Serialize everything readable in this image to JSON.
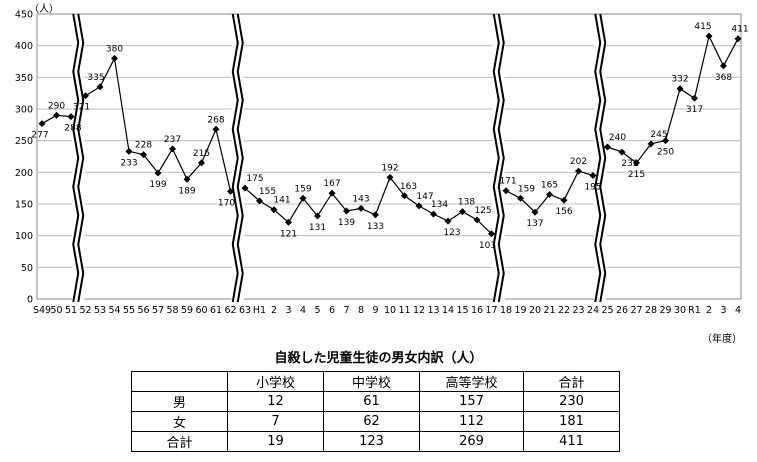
{
  "chart_data": {
    "type": "line",
    "ylabel": "（人）",
    "xlabel": "（年度）",
    "ylim": [
      0,
      450
    ],
    "yticks": [
      0,
      50,
      100,
      150,
      200,
      250,
      300,
      350,
      400,
      450
    ],
    "x_labels": [
      "S49",
      "50",
      "51",
      "52",
      "53",
      "54",
      "55",
      "56",
      "57",
      "58",
      "59",
      "60",
      "61",
      "62",
      "63",
      "H1",
      "2",
      "3",
      "4",
      "5",
      "6",
      "7",
      "8",
      "9",
      "10",
      "11",
      "12",
      "13",
      "14",
      "15",
      "16",
      "17",
      "18",
      "19",
      "20",
      "21",
      "22",
      "23",
      "24",
      "25",
      "26",
      "27",
      "28",
      "29",
      "30",
      "R1",
      "2",
      "3",
      "4"
    ],
    "segments": [
      {
        "values": [
          277,
          290,
          288
        ]
      },
      {
        "values": [
          321,
          335,
          380,
          233,
          228,
          199,
          237,
          189,
          215,
          268,
          170
        ]
      },
      {
        "values": [
          175,
          155,
          141,
          121,
          159,
          131,
          167,
          139,
          143,
          133,
          192,
          163,
          147,
          134,
          123,
          138,
          125,
          103
        ]
      },
      {
        "values": [
          171,
          159,
          137,
          165,
          156,
          202,
          195
        ]
      },
      {
        "values": [
          240,
          232,
          215,
          245,
          250,
          332,
          317,
          415,
          368,
          411
        ]
      }
    ]
  },
  "table": {
    "title": "自殺した児童生徒の男女内訳（人）",
    "headers": [
      "",
      "小学校",
      "中学校",
      "高等学校",
      "合計"
    ],
    "rows": [
      [
        "男",
        "12",
        "61",
        "157",
        "230"
      ],
      [
        "女",
        "7",
        "62",
        "112",
        "181"
      ],
      [
        "合計",
        "19",
        "123",
        "269",
        "411"
      ]
    ]
  }
}
